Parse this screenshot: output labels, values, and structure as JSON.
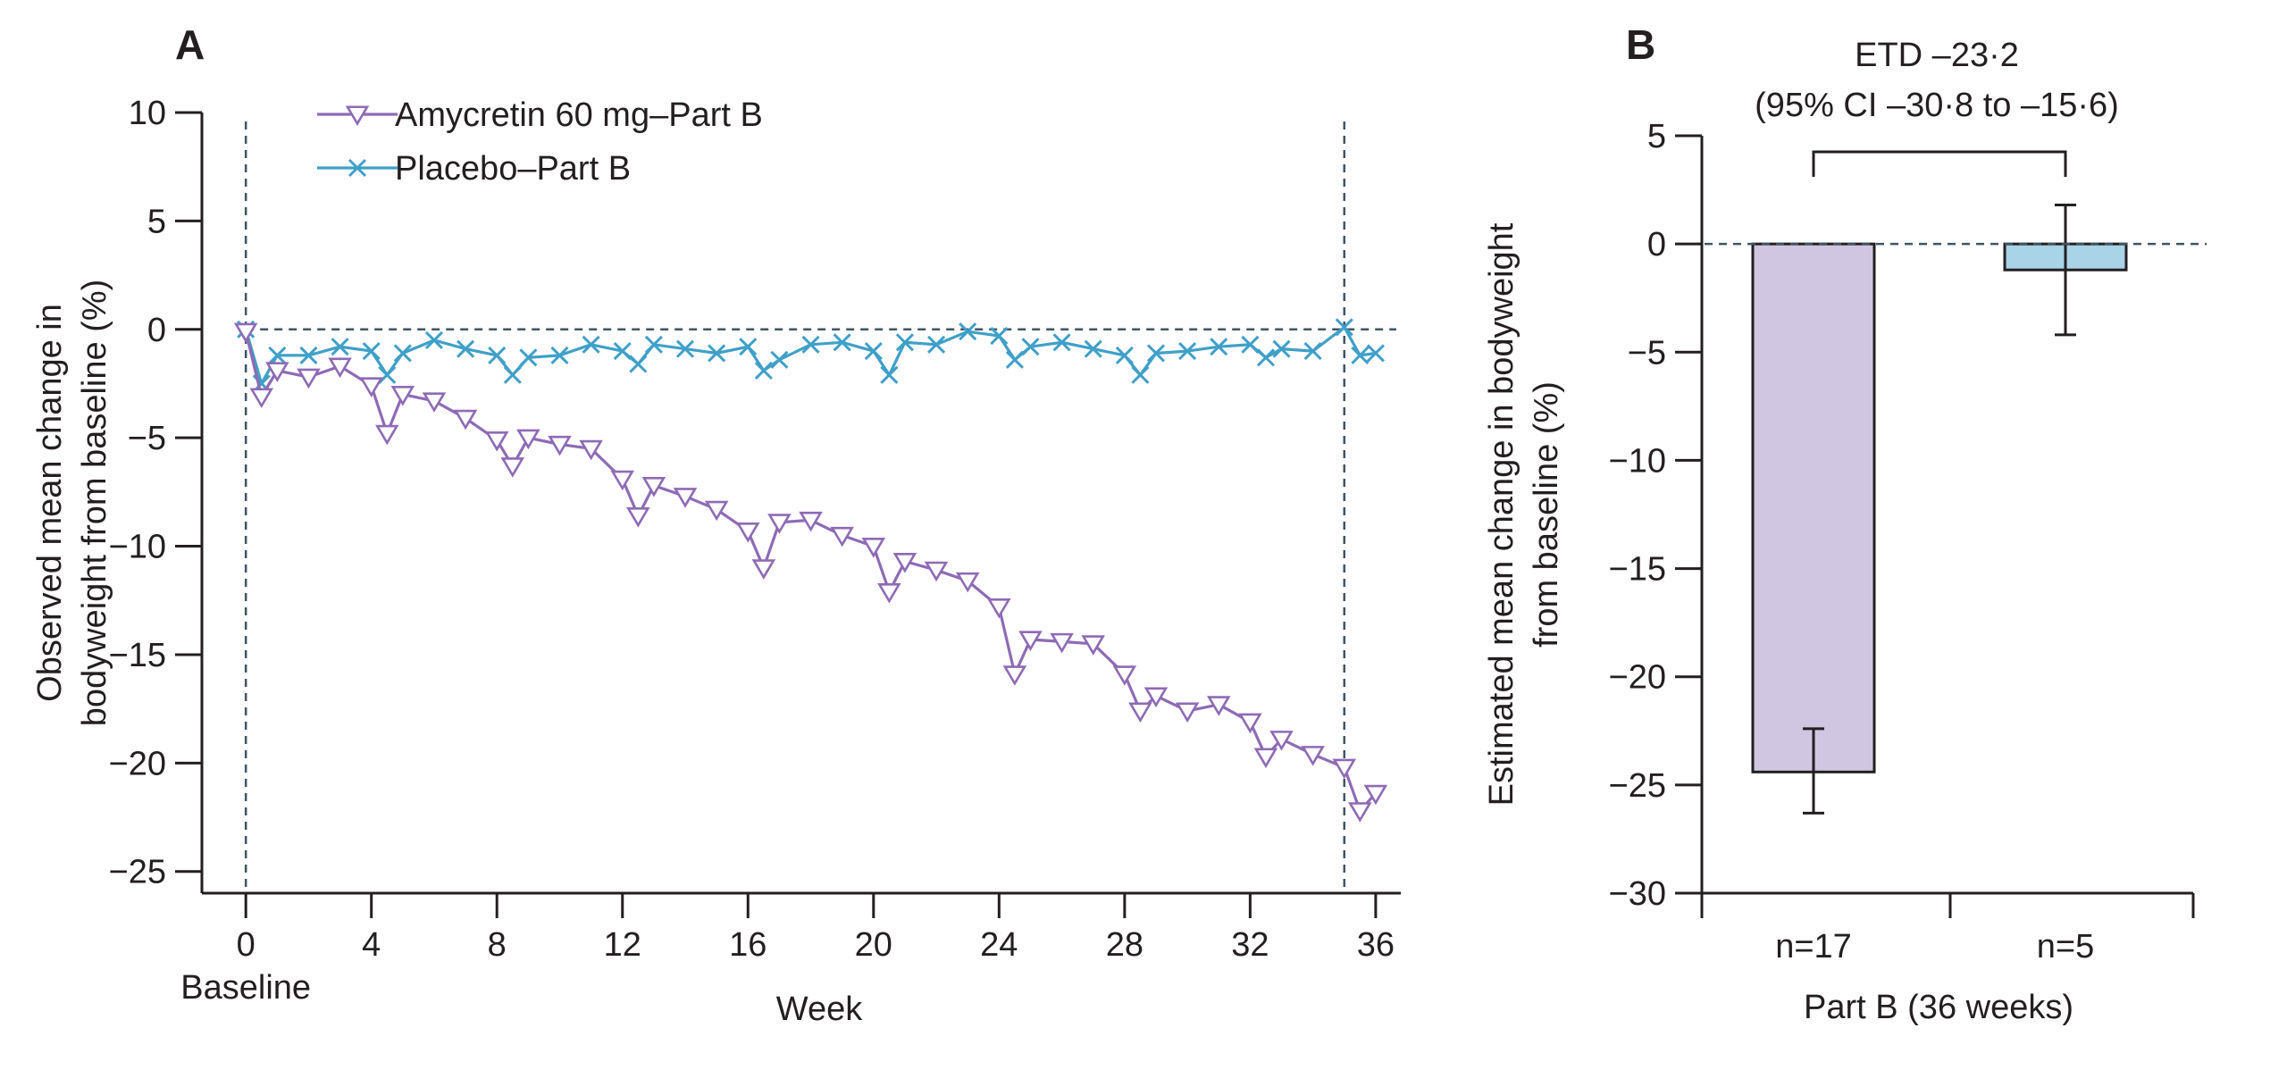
{
  "chart_data": [
    {
      "panel": "A",
      "type": "line",
      "xlabel": "Week",
      "ylabel": [
        "Observed mean change in",
        "bodyweight from baseline (%)"
      ],
      "xlim": [
        -1.4,
        36.8
      ],
      "ylim": [
        -26,
        10
      ],
      "xticks": [
        0,
        4,
        8,
        12,
        16,
        20,
        24,
        28,
        32,
        36
      ],
      "yticks": [
        10,
        5,
        0,
        -5,
        -10,
        -15,
        -20,
        -25
      ],
      "xtick_extra_label": "Baseline",
      "reference_line_y": 0,
      "vertical_lines_x": [
        0,
        35
      ],
      "legend_position": "top-left",
      "series": [
        {
          "name": "Amycretin 60 mg–Part B",
          "color": "#8e6bb5",
          "marker": "triangle-down",
          "x": [
            0,
            0.5,
            1,
            2,
            3,
            4,
            4.5,
            5,
            6,
            7,
            8,
            8.5,
            9,
            10,
            11,
            12,
            12.5,
            13,
            14,
            15,
            16,
            16.5,
            17,
            18,
            19,
            20,
            20.5,
            21,
            22,
            23,
            24,
            24.5,
            25,
            26,
            27,
            28,
            28.5,
            29,
            30,
            31,
            32,
            32.5,
            33,
            34,
            35,
            35.5,
            36
          ],
          "y": [
            -0.1,
            -3.1,
            -1.9,
            -2.2,
            -1.7,
            -2.6,
            -4.8,
            -3.0,
            -3.3,
            -4.1,
            -5.1,
            -6.3,
            -5.0,
            -5.3,
            -5.5,
            -6.9,
            -8.6,
            -7.2,
            -7.7,
            -8.3,
            -9.3,
            -11.0,
            -8.9,
            -8.8,
            -9.5,
            -10.0,
            -12.1,
            -10.7,
            -11.1,
            -11.6,
            -12.8,
            -15.9,
            -14.3,
            -14.4,
            -14.5,
            -15.9,
            -17.6,
            -16.9,
            -17.6,
            -17.3,
            -18.1,
            -19.7,
            -18.9,
            -19.6,
            -20.2,
            -22.2,
            -21.4
          ]
        },
        {
          "name": "Placebo–Part B",
          "color": "#3fa0c8",
          "marker": "x",
          "x": [
            0,
            0.5,
            1,
            2,
            3,
            4,
            4.5,
            5,
            6,
            7,
            8,
            8.5,
            9,
            10,
            11,
            12,
            12.5,
            13,
            14,
            15,
            16,
            16.5,
            17,
            18,
            19,
            20,
            20.5,
            21,
            22,
            23,
            24,
            24.5,
            25,
            26,
            27,
            28,
            28.5,
            29,
            30,
            31,
            32,
            32.5,
            33,
            34,
            35,
            35.5,
            36
          ],
          "y": [
            0.0,
            -2.5,
            -1.2,
            -1.2,
            -0.8,
            -1.0,
            -2.1,
            -1.1,
            -0.5,
            -0.9,
            -1.2,
            -2.1,
            -1.3,
            -1.2,
            -0.7,
            -1.0,
            -1.6,
            -0.7,
            -0.9,
            -1.1,
            -0.8,
            -1.9,
            -1.4,
            -0.7,
            -0.6,
            -1.0,
            -2.1,
            -0.6,
            -0.7,
            -0.1,
            -0.3,
            -1.4,
            -0.8,
            -0.6,
            -0.9,
            -1.2,
            -2.1,
            -1.1,
            -1.0,
            -0.8,
            -0.7,
            -1.3,
            -0.9,
            -1.0,
            0.1,
            -1.2,
            -1.1
          ]
        }
      ]
    },
    {
      "panel": "B",
      "type": "bar",
      "xlabel": "Part B (36 weeks)",
      "ylabel": [
        "Estimated mean change in bodyweight",
        "from baseline (%)"
      ],
      "ylim": [
        -30,
        5
      ],
      "yticks": [
        5,
        0,
        -5,
        -10,
        -15,
        -20,
        -25,
        -30
      ],
      "reference_line_y": 0,
      "categories": [
        "n=17",
        "n=5"
      ],
      "values": [
        -24.4,
        -1.2
      ],
      "error_low": [
        -26.3,
        -4.2
      ],
      "error_high": [
        -22.4,
        1.8
      ],
      "colors": [
        "#d0c6e2",
        "#a9d3e6"
      ],
      "annotation": [
        "ETD –23·2",
        "(95% CI –30·8 to –15·6)"
      ]
    }
  ]
}
